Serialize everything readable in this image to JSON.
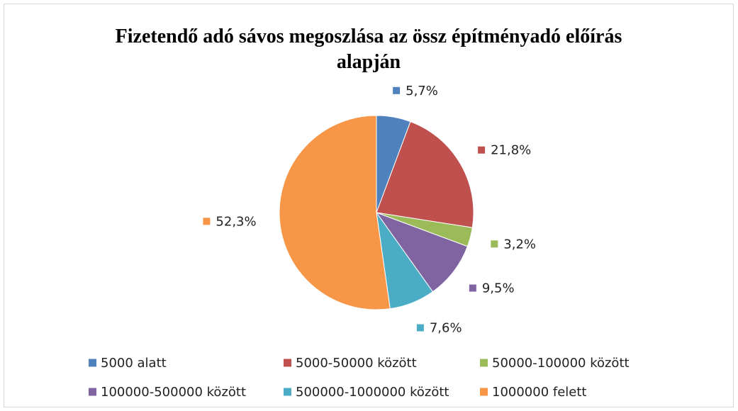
{
  "chart_data": {
    "type": "pie",
    "title": "Fizetendő adó sávos megoszlása az össz építményadó előírás alapján",
    "categories": [
      "5000 alatt",
      "5000-50000 között",
      "50000-100000 között",
      "100000-500000 között",
      "500000-1000000 között",
      "1000000 felett"
    ],
    "values": [
      5.7,
      21.8,
      3.2,
      9.5,
      7.6,
      52.3
    ],
    "value_labels": [
      "5,7%",
      "21,8%",
      "3,2%",
      "9,5%",
      "7,6%",
      "52,3%"
    ],
    "colors": [
      "#4f81bd",
      "#c0504d",
      "#9bbb59",
      "#8064a2",
      "#4bacc6",
      "#f79646"
    ],
    "legend": "bottom"
  }
}
